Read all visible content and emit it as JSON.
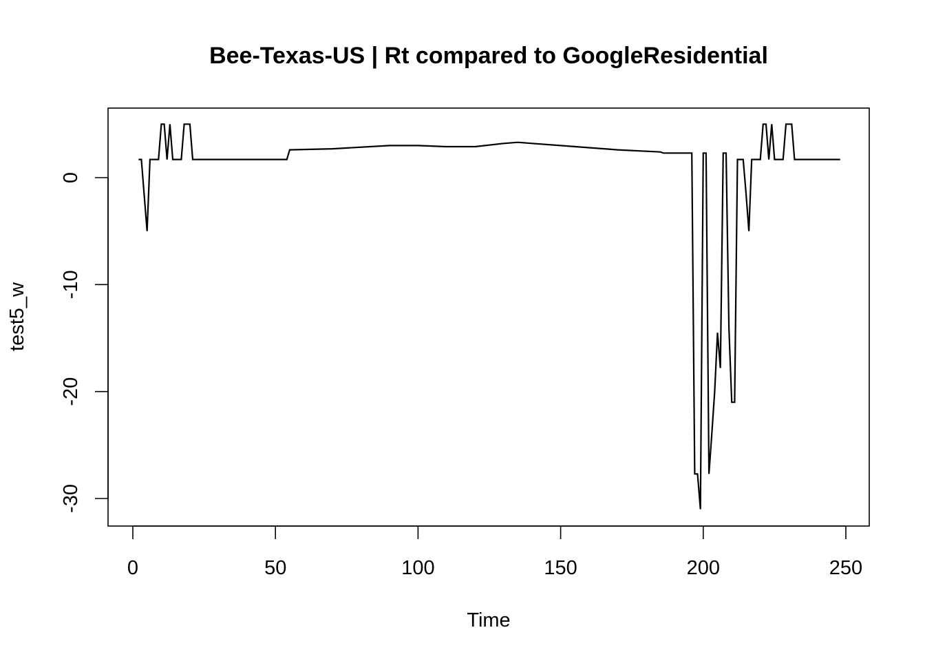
{
  "chart_data": {
    "type": "line",
    "title": "Bee-Texas-US | Rt compared to GoogleResidential",
    "xlabel": "Time",
    "ylabel": "test5_w",
    "xlim": [
      0,
      250
    ],
    "ylim": [
      -30,
      0
    ],
    "x_ticks": [
      0,
      50,
      100,
      150,
      200,
      250
    ],
    "y_ticks": [
      -30,
      -20,
      -10,
      0
    ],
    "grid": false,
    "legend": "none",
    "line_color": "#000000",
    "x": [
      2,
      3,
      5,
      6,
      9,
      10,
      11,
      12,
      13,
      14,
      17,
      18,
      19,
      20,
      21,
      30,
      40,
      50,
      54,
      55,
      70,
      90,
      100,
      110,
      120,
      130,
      135,
      140,
      150,
      160,
      170,
      185,
      186,
      196,
      197,
      198,
      199,
      200,
      201,
      202,
      203,
      204,
      205,
      206,
      207,
      208,
      209,
      210,
      211,
      212,
      213,
      214,
      215,
      216,
      217,
      218,
      219,
      220,
      221,
      222,
      223,
      224,
      225,
      226,
      227,
      228,
      229,
      230,
      231,
      232,
      233,
      240,
      248
    ],
    "values": [
      1.7,
      1.7,
      -5.0,
      1.7,
      1.7,
      5.0,
      5.0,
      1.7,
      5.0,
      1.7,
      1.7,
      5.0,
      5.0,
      5.0,
      1.7,
      1.7,
      1.7,
      1.7,
      1.7,
      2.6,
      2.7,
      3.0,
      3.0,
      2.9,
      2.9,
      3.2,
      3.3,
      3.2,
      3.0,
      2.8,
      2.6,
      2.4,
      2.3,
      2.3,
      -27.7,
      -27.7,
      -31.0,
      2.3,
      2.3,
      -27.7,
      -24.0,
      -20.0,
      -14.5,
      -17.8,
      2.3,
      2.3,
      -14.0,
      -21.0,
      -21.0,
      1.7,
      1.7,
      1.7,
      -1.5,
      -5.0,
      1.7,
      1.7,
      1.7,
      1.7,
      5.0,
      5.0,
      1.7,
      5.0,
      1.7,
      1.7,
      1.7,
      1.7,
      5.0,
      5.0,
      5.0,
      1.7,
      1.7,
      1.7,
      1.7
    ]
  }
}
